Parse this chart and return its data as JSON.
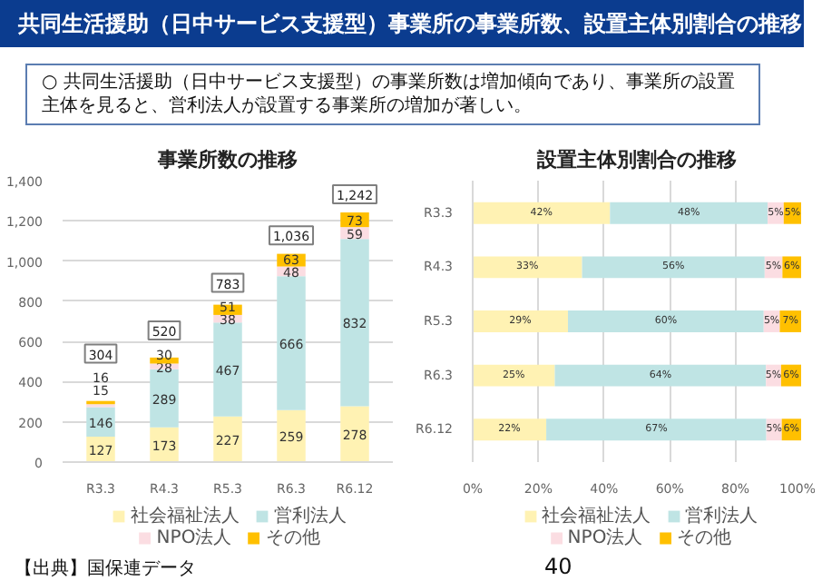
{
  "chart_data": [
    {
      "type": "bar",
      "title": "事業所数の推移",
      "stacked": true,
      "categories": [
        "R3.3",
        "R4.3",
        "R5.3",
        "R6.3",
        "R6.12"
      ],
      "series": [
        {
          "name": "社会福祉法人",
          "color": "#fff2b3",
          "values": [
            127,
            173,
            227,
            259,
            278
          ]
        },
        {
          "name": "営利法人",
          "color": "#bfe4e4",
          "values": [
            146,
            289,
            467,
            666,
            832
          ]
        },
        {
          "name": "NPO法人",
          "color": "#fbdde2",
          "values": [
            15,
            28,
            38,
            48,
            59
          ]
        },
        {
          "name": "その他",
          "color": "#ffc000",
          "values": [
            16,
            30,
            51,
            63,
            73
          ]
        }
      ],
      "data_labels": true,
      "totals": [
        "304",
        "520",
        "783",
        "1,036",
        "1,242"
      ],
      "ylim": [
        0,
        1400
      ],
      "yticks": [
        0,
        200,
        400,
        600,
        800,
        {
          "value": 1000,
          "label": "1,000"
        },
        {
          "value": 1200,
          "label": "1,200"
        },
        {
          "value": 1400,
          "label": "1,400"
        }
      ],
      "grid": "y",
      "legend": "bottom",
      "annotations": [
        "共同生活援助（日中サービス支援型）事業所の事業所数、設置主体別割合の推移",
        "○ 共同生活援助（日中サービス支援型）の事業所数は増加傾向であり、事業所の設置主体を見ると、営利法人が設置する事業所の増加が著しい。",
        "【出典】国保連データ"
      ]
    },
    {
      "type": "bar",
      "title": "設置主体別割合の推移",
      "stacked": true,
      "orientation": "horizontal",
      "categories": [
        "R3.3",
        "R4.3",
        "R5.3",
        "R6.3",
        "R6.12"
      ],
      "series": [
        {
          "name": "社会福祉法人",
          "color": "#fff2b3",
          "values": [
            41.8,
            33.3,
            29.0,
            25.0,
            22.4
          ],
          "value_labels": [
            "42%",
            "33%",
            "29%",
            "25%",
            "22%"
          ]
        },
        {
          "name": "営利法人",
          "color": "#bfe4e4",
          "values": [
            48.0,
            55.6,
            59.6,
            64.3,
            67.0
          ],
          "value_labels": [
            "48%",
            "56%",
            "60%",
            "64%",
            "67%"
          ]
        },
        {
          "name": "NPO法人",
          "color": "#fbdde2",
          "values": [
            4.9,
            5.4,
            4.9,
            4.6,
            4.7
          ],
          "value_labels": [
            "5%",
            "5%",
            "5%",
            "5%",
            "5%"
          ]
        },
        {
          "name": "その他",
          "color": "#ffc000",
          "values": [
            5.3,
            5.7,
            6.5,
            6.1,
            5.9
          ],
          "value_labels": [
            "5%",
            "6%",
            "7%",
            "6%",
            "6%"
          ]
        }
      ],
      "xlim": [
        0,
        100
      ],
      "xticks": [
        {
          "value": 0,
          "label": "0%"
        },
        {
          "value": 20,
          "label": "20%"
        },
        {
          "value": 40,
          "label": "40%"
        },
        {
          "value": 60,
          "label": "60%"
        },
        {
          "value": 80,
          "label": "80%"
        },
        {
          "value": 100,
          "label": "100%"
        }
      ],
      "grid": "x",
      "legend": "bottom",
      "annotations": [
        "40"
      ]
    }
  ]
}
